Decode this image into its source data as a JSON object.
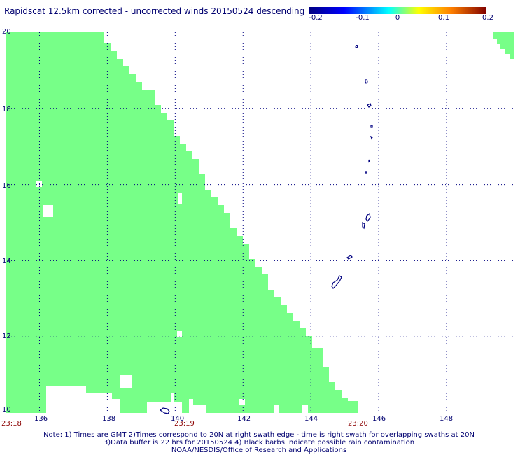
{
  "title": "Rapidscat 12.5km corrected - uncorrected winds 20150524 descending",
  "colorbar": {
    "labels": [
      "-0.2",
      "-0.1",
      "0",
      "0.1",
      "0.2"
    ],
    "colors": [
      "#000080",
      "#0000ff",
      "#00ffff",
      "#ffff00",
      "#ff8000",
      "#800000"
    ]
  },
  "map": {
    "lon_range": [
      135,
      150
    ],
    "lat_range": [
      10,
      20
    ],
    "lon_ticks": [
      "136",
      "138",
      "140",
      "142",
      "144",
      "146",
      "148"
    ],
    "lat_ticks": [
      "10",
      "12",
      "14",
      "16",
      "18",
      "20"
    ],
    "swath_color": "#77ff88",
    "coastline_color": "#000080",
    "grid_color": "#000080"
  },
  "times": [
    "23:18",
    "23:19",
    "23:20"
  ],
  "notes": [
    "Note: 1) Times are GMT 2)Times correspond to 20N at right swath edge - time is right swath for overlapping swaths at 20N",
    "3)Data buffer is 22 hrs for 20150524 4) Black barbs indicate possible rain contamination",
    "NOAA/NESDIS/Office of Research and Applications"
  ]
}
